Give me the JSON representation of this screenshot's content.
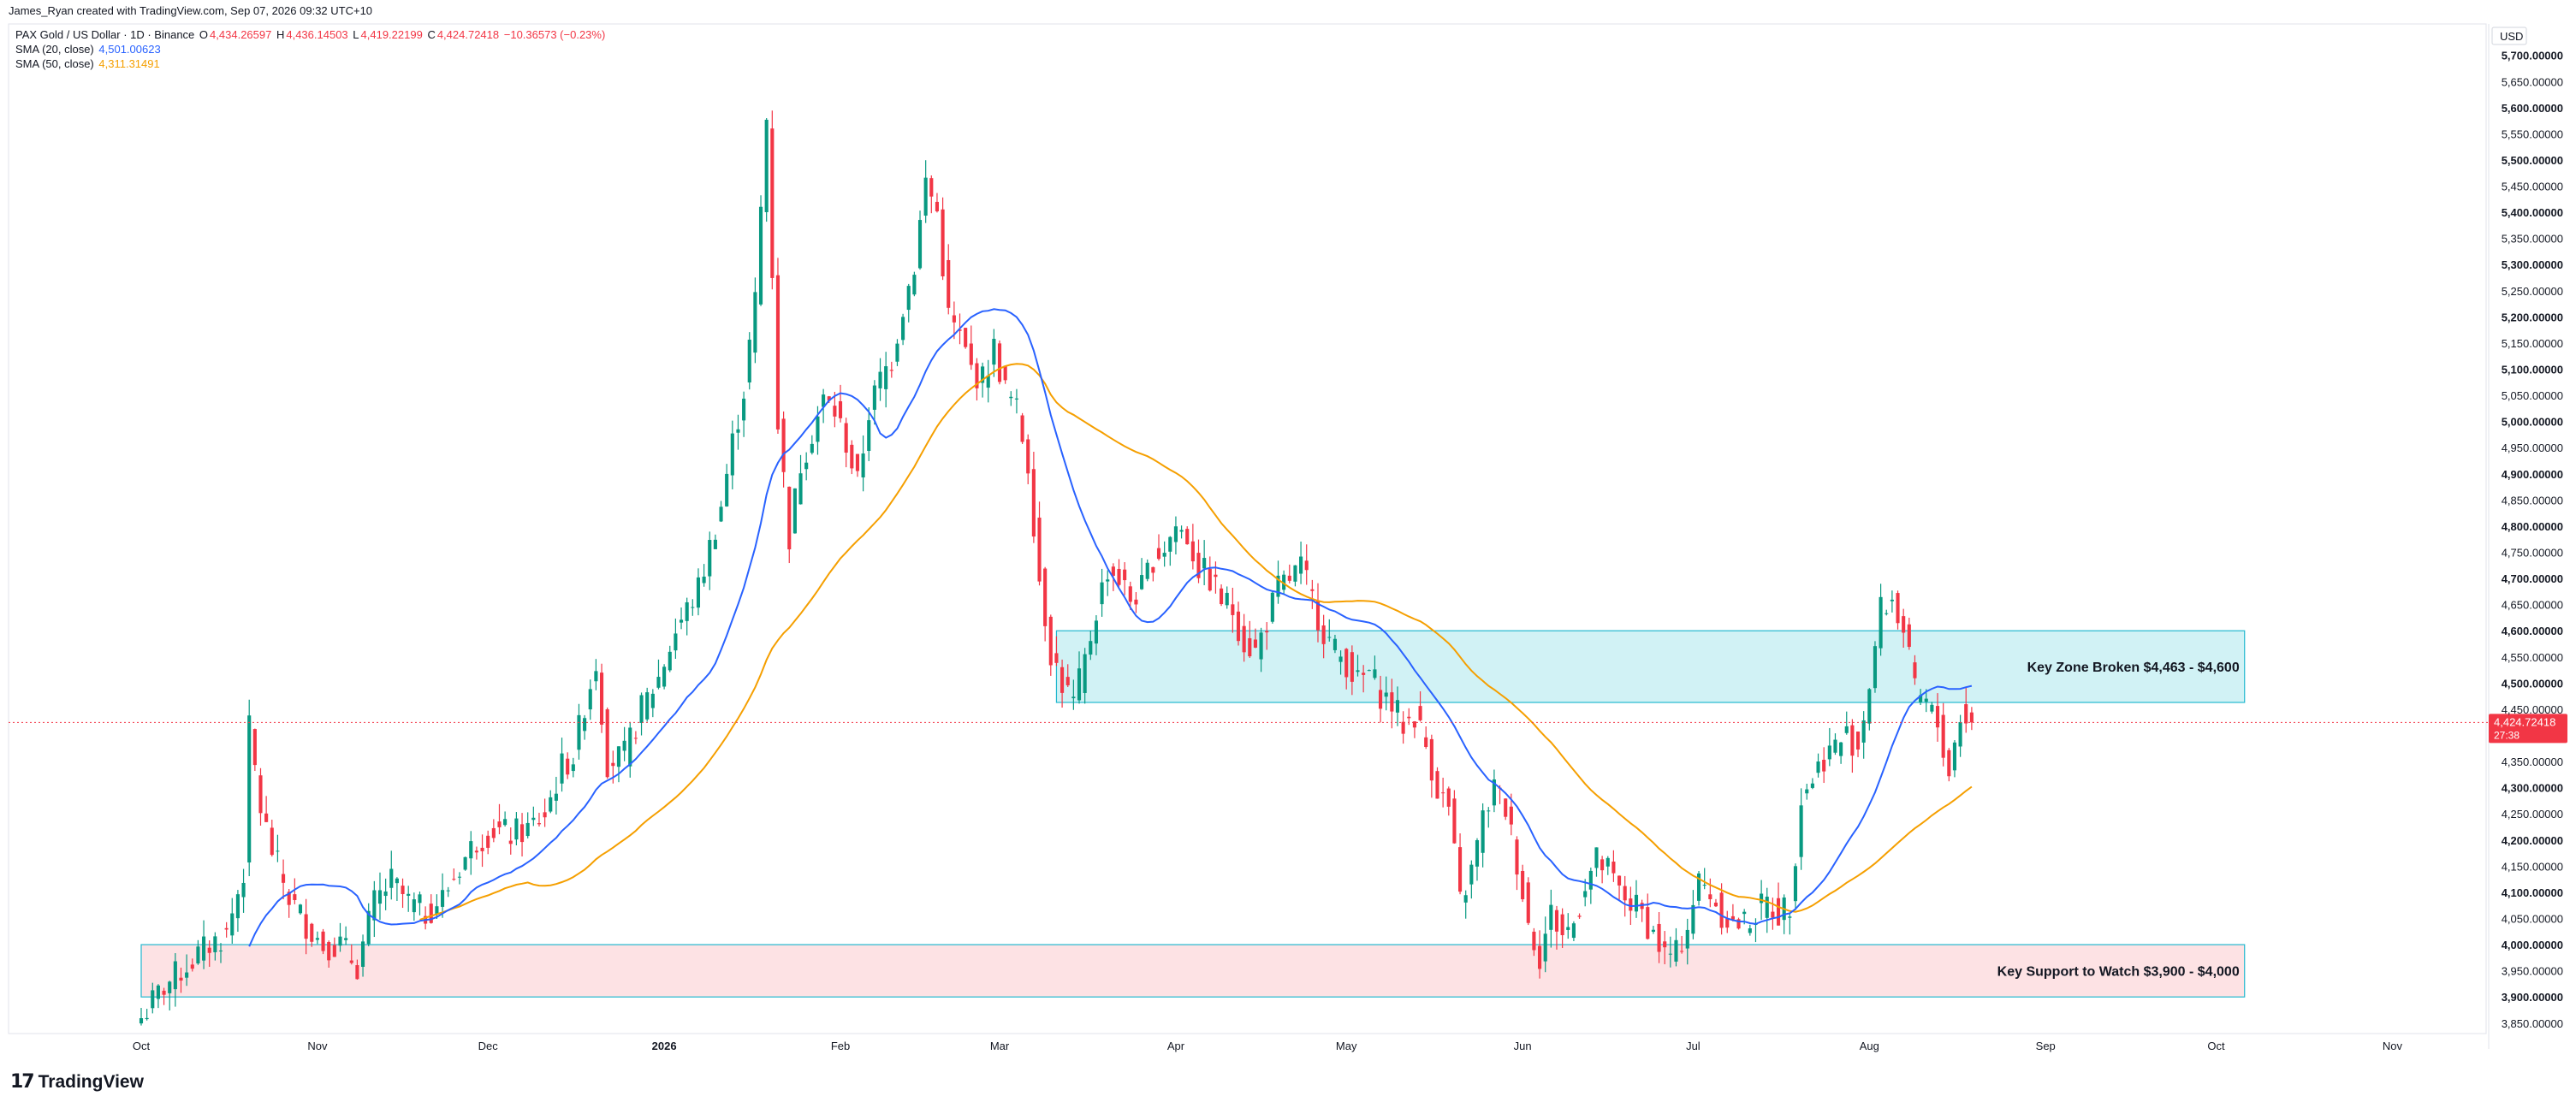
{
  "header": {
    "attribution": "James_Ryan created with TradingView.com, Sep 07, 2026 09:32 UTC+10"
  },
  "legend": {
    "symbol": "PAX Gold / US Dollar · 1D · Binance",
    "o_label": "O",
    "o_value": "4,434.26597",
    "h_label": "H",
    "h_value": "4,436.14503",
    "l_label": "L",
    "l_value": "4,419.22199",
    "c_label": "C",
    "c_value": "4,424.72418",
    "change": "−10.36573 (−0.23%)",
    "sma20_label": "SMA (20, close)",
    "sma20_value": "4,501.00623",
    "sma50_label": "SMA (50, close)",
    "sma50_value": "4,311.31491"
  },
  "footer": {
    "brand": "TradingView",
    "brand_mark": "17"
  },
  "colors": {
    "up": "#089981",
    "down": "#f23645",
    "sma20": "#2962ff",
    "sma50": "#f59f00",
    "resistance_fill": "#d1f2f5",
    "resistance_border": "#22b8cf",
    "support_fill": "#fde2e4",
    "support_border": "#22b8cf"
  },
  "chart_data": {
    "type": "candlestick",
    "currency_label": "USD",
    "ylim": [
      3830,
      5760
    ],
    "y_ticks": [
      "5,700.00000",
      "5,650.00000",
      "5,600.00000",
      "5,550.00000",
      "5,500.00000",
      "5,450.00000",
      "5,400.00000",
      "5,350.00000",
      "5,300.00000",
      "5,250.00000",
      "5,200.00000",
      "5,150.00000",
      "5,100.00000",
      "5,050.00000",
      "5,000.00000",
      "4,950.00000",
      "4,900.00000",
      "4,850.00000",
      "4,800.00000",
      "4,750.00000",
      "4,700.00000",
      "4,650.00000",
      "4,600.00000",
      "4,550.00000",
      "4,500.00000",
      "4,450.00000",
      "4,350.00000",
      "4,300.00000",
      "4,250.00000",
      "4,200.00000",
      "4,150.00000",
      "4,100.00000",
      "4,050.00000",
      "4,000.00000",
      "3,950.00000",
      "3,900.00000",
      "3,850.00000"
    ],
    "x_ticks": [
      {
        "label": "Oct",
        "day": 1
      },
      {
        "label": "Nov",
        "day": 32
      },
      {
        "label": "Dec",
        "day": 62
      },
      {
        "label": "2026",
        "day": 93
      },
      {
        "label": "Feb",
        "day": 124
      },
      {
        "label": "Mar",
        "day": 152
      },
      {
        "label": "Apr",
        "day": 183
      },
      {
        "label": "May",
        "day": 213
      },
      {
        "label": "Jun",
        "day": 244
      },
      {
        "label": "Jul",
        "day": 274
      },
      {
        "label": "Aug",
        "day": 305
      },
      {
        "label": "Sep",
        "day": 336
      },
      {
        "label": "Oct",
        "day": 366
      },
      {
        "label": "Nov",
        "day": 397
      }
    ],
    "x_domain": [
      1,
      401
    ],
    "last_price": {
      "value": 4424.72418,
      "label": "4,424.72418",
      "countdown": "27:38"
    },
    "zones": [
      {
        "name": "resistance",
        "label": "Key Zone Broken $4,463 - $4,600",
        "low": 4463,
        "high": 4600,
        "from_day": 162,
        "to_day": 371
      },
      {
        "name": "support",
        "label": "Key Support to Watch $3,900 - $4,000",
        "low": 3900,
        "high": 4000,
        "from_day": 1,
        "to_day": 371
      }
    ],
    "close_anchors": [
      [
        1,
        3860
      ],
      [
        5,
        3920
      ],
      [
        9,
        3960
      ],
      [
        13,
        4000
      ],
      [
        16,
        4020
      ],
      [
        19,
        4140
      ],
      [
        20,
        4410
      ],
      [
        22,
        4260
      ],
      [
        24,
        4180
      ],
      [
        27,
        4090
      ],
      [
        30,
        4040
      ],
      [
        33,
        4000
      ],
      [
        36,
        4000
      ],
      [
        39,
        3960
      ],
      [
        42,
        4080
      ],
      [
        45,
        4120
      ],
      [
        48,
        4080
      ],
      [
        51,
        4060
      ],
      [
        54,
        4090
      ],
      [
        57,
        4150
      ],
      [
        60,
        4200
      ],
      [
        63,
        4220
      ],
      [
        66,
        4210
      ],
      [
        69,
        4220
      ],
      [
        72,
        4250
      ],
      [
        75,
        4340
      ],
      [
        77,
        4360
      ],
      [
        79,
        4460
      ],
      [
        81,
        4540
      ],
      [
        83,
        4350
      ],
      [
        86,
        4360
      ],
      [
        89,
        4450
      ],
      [
        92,
        4510
      ],
      [
        95,
        4600
      ],
      [
        97,
        4640
      ],
      [
        99,
        4680
      ],
      [
        101,
        4760
      ],
      [
        103,
        4840
      ],
      [
        105,
        4960
      ],
      [
        107,
        5060
      ],
      [
        109,
        5230
      ],
      [
        111,
        5580
      ],
      [
        113,
        5000
      ],
      [
        115,
        4780
      ],
      [
        117,
        4920
      ],
      [
        119,
        4980
      ],
      [
        121,
        5040
      ],
      [
        123,
        5020
      ],
      [
        125,
        4960
      ],
      [
        127,
        4880
      ],
      [
        129,
        5020
      ],
      [
        131,
        5080
      ],
      [
        133,
        5120
      ],
      [
        135,
        5220
      ],
      [
        137,
        5300
      ],
      [
        139,
        5460
      ],
      [
        141,
        5400
      ],
      [
        143,
        5200
      ],
      [
        145,
        5160
      ],
      [
        147,
        5100
      ],
      [
        149,
        5080
      ],
      [
        151,
        5140
      ],
      [
        153,
        5060
      ],
      [
        155,
        5020
      ],
      [
        157,
        4920
      ],
      [
        159,
        4700
      ],
      [
        161,
        4560
      ],
      [
        163,
        4500
      ],
      [
        165,
        4460
      ],
      [
        167,
        4540
      ],
      [
        169,
        4640
      ],
      [
        171,
        4720
      ],
      [
        173,
        4700
      ],
      [
        175,
        4660
      ],
      [
        177,
        4680
      ],
      [
        179,
        4740
      ],
      [
        181,
        4760
      ],
      [
        183,
        4800
      ],
      [
        185,
        4780
      ],
      [
        187,
        4720
      ],
      [
        189,
        4700
      ],
      [
        191,
        4660
      ],
      [
        193,
        4640
      ],
      [
        195,
        4580
      ],
      [
        197,
        4560
      ],
      [
        199,
        4620
      ],
      [
        201,
        4680
      ],
      [
        203,
        4700
      ],
      [
        205,
        4720
      ],
      [
        207,
        4660
      ],
      [
        209,
        4600
      ],
      [
        211,
        4560
      ],
      [
        213,
        4540
      ],
      [
        215,
        4500
      ],
      [
        217,
        4520
      ],
      [
        219,
        4480
      ],
      [
        221,
        4460
      ],
      [
        223,
        4420
      ],
      [
        225,
        4440
      ],
      [
        227,
        4380
      ],
      [
        229,
        4300
      ],
      [
        231,
        4260
      ],
      [
        233,
        4080
      ],
      [
        235,
        4140
      ],
      [
        237,
        4240
      ],
      [
        239,
        4300
      ],
      [
        241,
        4260
      ],
      [
        243,
        4160
      ],
      [
        245,
        4040
      ],
      [
        247,
        3980
      ],
      [
        249,
        4060
      ],
      [
        251,
        4020
      ],
      [
        253,
        4040
      ],
      [
        255,
        4120
      ],
      [
        257,
        4160
      ],
      [
        259,
        4140
      ],
      [
        261,
        4100
      ],
      [
        263,
        4080
      ],
      [
        265,
        4060
      ],
      [
        267,
        4020
      ],
      [
        269,
        3980
      ],
      [
        271,
        3980
      ],
      [
        273,
        4040
      ],
      [
        275,
        4120
      ],
      [
        277,
        4100
      ],
      [
        279,
        4060
      ],
      [
        281,
        4040
      ],
      [
        283,
        4040
      ],
      [
        285,
        4060
      ],
      [
        287,
        4080
      ],
      [
        289,
        4060
      ],
      [
        291,
        4080
      ],
      [
        293,
        4280
      ],
      [
        295,
        4320
      ],
      [
        297,
        4360
      ],
      [
        299,
        4380
      ],
      [
        301,
        4400
      ],
      [
        303,
        4380
      ],
      [
        305,
        4500
      ],
      [
        307,
        4640
      ],
      [
        309,
        4660
      ],
      [
        311,
        4600
      ],
      [
        313,
        4480
      ],
      [
        315,
        4460
      ],
      [
        317,
        4420
      ],
      [
        319,
        4330
      ],
      [
        321,
        4440
      ],
      [
        323,
        4426
      ]
    ]
  }
}
